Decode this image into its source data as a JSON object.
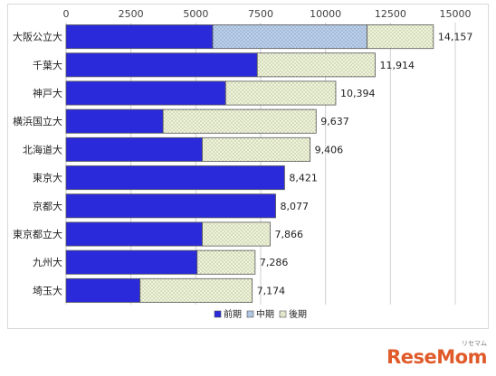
{
  "chart_data": {
    "type": "bar",
    "orientation": "horizontal",
    "stacked": true,
    "categories": [
      "大阪公立大",
      "千葉大",
      "神戸大",
      "横浜国立大",
      "北海道大",
      "東京大",
      "京都大",
      "東京都立大",
      "九州大",
      "埼玉大"
    ],
    "series": [
      {
        "name": "前期",
        "values": [
          5650,
          7370,
          6150,
          3740,
          5250,
          8421,
          8077,
          5250,
          5050,
          2850
        ],
        "color": "#2a2adb",
        "pattern": "solid"
      },
      {
        "name": "中期",
        "values": [
          5950,
          0,
          0,
          0,
          0,
          0,
          0,
          0,
          0,
          0
        ],
        "color": "#bcd0ea",
        "pattern": "dots"
      },
      {
        "name": "後期",
        "values": [
          2557,
          4544,
          4244,
          5897,
          4156,
          0,
          0,
          2616,
          2236,
          4324
        ],
        "color": "#eef3da",
        "pattern": "dots"
      }
    ],
    "totals": [
      "14,157",
      "11,914",
      "10,394",
      "9,637",
      "9,406",
      "8,421",
      "8,077",
      "7,866",
      "7,286",
      "7,174"
    ],
    "x_ticks": [
      "0",
      "2500",
      "5000",
      "7500",
      "10000",
      "12500",
      "15000"
    ],
    "xlim": [
      0,
      15000
    ],
    "title": "",
    "xlabel": "",
    "ylabel": "",
    "grid": true,
    "legend_position": "bottom"
  },
  "watermark": {
    "text": "ReseMom",
    "sub": "リセマム"
  }
}
